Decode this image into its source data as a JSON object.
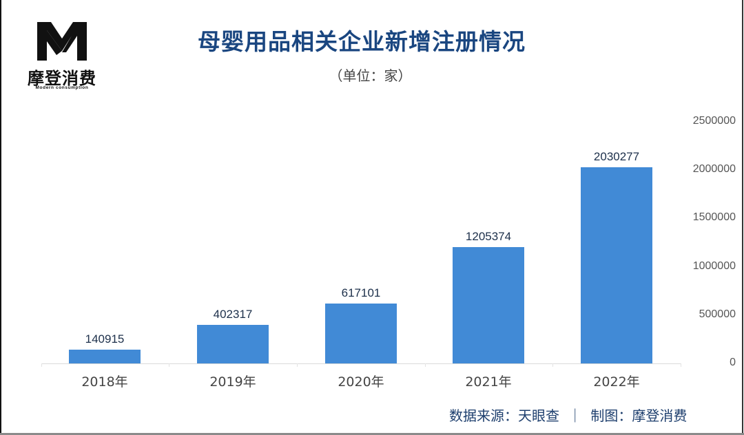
{
  "logo": {
    "mark": "M",
    "name_cn": "摩登消费",
    "name_en": "Modern consumption"
  },
  "header": {
    "title": "母婴用品相关企业新增注册情况",
    "subtitle": "（单位：家）"
  },
  "colors": {
    "bar": "#418ad6",
    "title": "#1a4680",
    "footer": "#1e3f6e"
  },
  "footer": {
    "text": "数据来源：天眼查  ｜  制图：摩登消费"
  },
  "chart_data": {
    "type": "bar",
    "title": "母婴用品相关企业新增注册情况",
    "subtitle": "（单位：家）",
    "xlabel": "",
    "ylabel": "",
    "categories": [
      "2018年",
      "2019年",
      "2020年",
      "2021年",
      "2022年"
    ],
    "values": [
      140915,
      402317,
      617101,
      1205374,
      2030277
    ],
    "value_labels": [
      "140915",
      "402317",
      "617101",
      "1205374",
      "2030277"
    ],
    "ylim": [
      0,
      2500000
    ],
    "yticks": [
      0,
      500000,
      1000000,
      1500000,
      2000000,
      2500000
    ],
    "ytick_labels": [
      "0",
      "500000",
      "1000000",
      "1500000",
      "2000000",
      "2500000"
    ],
    "y_axis_position": "right",
    "grid": false,
    "legend": "none",
    "source": "数据来源：天眼查",
    "credit": "制图：摩登消费"
  }
}
